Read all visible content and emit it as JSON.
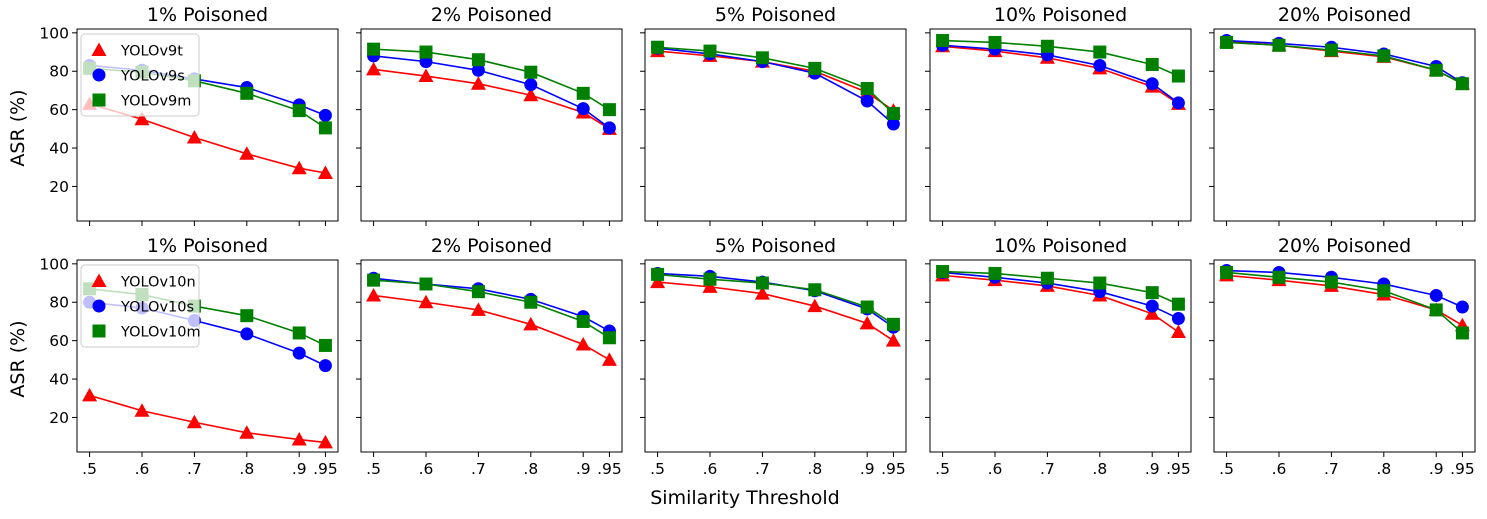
{
  "figure": {
    "xlabel": "Similarity Threshold",
    "ylabel": "ASR (%)"
  },
  "colors": {
    "tri": "#ff0000",
    "circ": "#0000ff",
    "sq": "#008000"
  },
  "chart_data": [
    {
      "type": "line",
      "row": 0,
      "col": 0,
      "title": "1% Poisoned",
      "x": [
        0.5,
        0.6,
        0.7,
        0.8,
        0.9,
        0.95
      ],
      "xticklabels": [
        ".5",
        ".6",
        ".7",
        ".8",
        ".9",
        ".95"
      ],
      "yticks": [
        20,
        40,
        60,
        80,
        100
      ],
      "ylim": [
        2,
        102
      ],
      "legend": "top-left",
      "series": [
        {
          "name": "YOLOv9t",
          "marker": "triangle",
          "values": [
            63,
            55,
            45.5,
            37,
            29.5,
            27
          ]
        },
        {
          "name": "YOLOv9s",
          "marker": "circle",
          "values": [
            83,
            80.5,
            76,
            71.5,
            62.5,
            57
          ]
        },
        {
          "name": "YOLOv9m",
          "marker": "square",
          "values": [
            81.5,
            79.5,
            75,
            68.5,
            59.5,
            50.5
          ]
        }
      ]
    },
    {
      "type": "line",
      "row": 0,
      "col": 1,
      "title": "2% Poisoned",
      "x": [
        0.5,
        0.6,
        0.7,
        0.8,
        0.9,
        0.95
      ],
      "xticklabels": [
        ".5",
        ".6",
        ".7",
        ".8",
        ".9",
        ".95"
      ],
      "yticks": [
        20,
        40,
        60,
        80,
        100
      ],
      "ylim": [
        2,
        102
      ],
      "series": [
        {
          "name": "YOLOv9t",
          "marker": "triangle",
          "values": [
            81,
            77.5,
            73.5,
            67.5,
            58.5,
            50
          ]
        },
        {
          "name": "YOLOv9s",
          "marker": "circle",
          "values": [
            88,
            85,
            80.5,
            73,
            60.5,
            50.5
          ]
        },
        {
          "name": "YOLOv9m",
          "marker": "square",
          "values": [
            91.5,
            90,
            86,
            79.5,
            68.5,
            60
          ]
        }
      ]
    },
    {
      "type": "line",
      "row": 0,
      "col": 2,
      "title": "5% Poisoned",
      "x": [
        0.5,
        0.6,
        0.7,
        0.8,
        0.9,
        0.95
      ],
      "xticklabels": [
        ".5",
        ".6",
        ".7",
        ".8",
        ".9",
        ".95"
      ],
      "yticks": [
        20,
        40,
        60,
        80,
        100
      ],
      "ylim": [
        2,
        102
      ],
      "series": [
        {
          "name": "YOLOv9t",
          "marker": "triangle",
          "values": [
            90.5,
            88,
            85,
            80,
            69,
            59.5
          ]
        },
        {
          "name": "YOLOv9s",
          "marker": "circle",
          "values": [
            92,
            89,
            85,
            79,
            64.5,
            52.5
          ]
        },
        {
          "name": "YOLOv9m",
          "marker": "square",
          "values": [
            92.5,
            90.5,
            87,
            81.5,
            71,
            58
          ]
        }
      ]
    },
    {
      "type": "line",
      "row": 0,
      "col": 3,
      "title": "10% Poisoned",
      "x": [
        0.5,
        0.6,
        0.7,
        0.8,
        0.9,
        0.95
      ],
      "xticklabels": [
        ".5",
        ".6",
        ".7",
        ".8",
        ".9",
        ".95"
      ],
      "yticks": [
        20,
        40,
        60,
        80,
        100
      ],
      "ylim": [
        2,
        102
      ],
      "series": [
        {
          "name": "YOLOv9t",
          "marker": "triangle",
          "values": [
            93,
            90.5,
            87,
            81.5,
            72,
            63
          ]
        },
        {
          "name": "YOLOv9s",
          "marker": "circle",
          "values": [
            93.5,
            91.5,
            88.5,
            83,
            73.5,
            63.5
          ]
        },
        {
          "name": "YOLOv9m",
          "marker": "square",
          "values": [
            96,
            95,
            93,
            90,
            83.5,
            77.5
          ]
        }
      ]
    },
    {
      "type": "line",
      "row": 0,
      "col": 4,
      "title": "20% Poisoned",
      "x": [
        0.5,
        0.6,
        0.7,
        0.8,
        0.9,
        0.95
      ],
      "xticklabels": [
        ".5",
        ".6",
        ".7",
        ".8",
        ".9",
        ".95"
      ],
      "yticks": [
        20,
        40,
        60,
        80,
        100
      ],
      "ylim": [
        2,
        102
      ],
      "series": [
        {
          "name": "YOLOv9t",
          "marker": "triangle",
          "values": [
            95.5,
            93.5,
            90.5,
            87.5,
            80.5,
            73.5
          ]
        },
        {
          "name": "YOLOv9s",
          "marker": "circle",
          "values": [
            96,
            94.5,
            92.5,
            89,
            82.5,
            74
          ]
        },
        {
          "name": "YOLOv9m",
          "marker": "square",
          "values": [
            95,
            93.5,
            91,
            88,
            80.5,
            73.5
          ]
        }
      ]
    },
    {
      "type": "line",
      "row": 1,
      "col": 0,
      "title": "1% Poisoned",
      "x": [
        0.5,
        0.6,
        0.7,
        0.8,
        0.9,
        0.95
      ],
      "xticklabels": [
        ".5",
        ".6",
        ".7",
        ".8",
        ".9",
        ".95"
      ],
      "yticks": [
        20,
        40,
        60,
        80,
        100
      ],
      "ylim": [
        2,
        102
      ],
      "legend": "top-left",
      "series": [
        {
          "name": "YOLOv10n",
          "marker": "triangle",
          "values": [
            31.5,
            23.5,
            17.5,
            12,
            8.5,
            7
          ]
        },
        {
          "name": "YOLOv10s",
          "marker": "circle",
          "values": [
            80,
            77,
            70.5,
            63.5,
            53.5,
            47
          ]
        },
        {
          "name": "YOLOv10m",
          "marker": "square",
          "values": [
            87,
            84,
            78,
            73,
            64,
            57.5
          ]
        }
      ]
    },
    {
      "type": "line",
      "row": 1,
      "col": 1,
      "title": "2% Poisoned",
      "x": [
        0.5,
        0.6,
        0.7,
        0.8,
        0.9,
        0.95
      ],
      "xticklabels": [
        ".5",
        ".6",
        ".7",
        ".8",
        ".9",
        ".95"
      ],
      "yticks": [
        20,
        40,
        60,
        80,
        100
      ],
      "ylim": [
        2,
        102
      ],
      "series": [
        {
          "name": "YOLOv10n",
          "marker": "triangle",
          "values": [
            83.5,
            80,
            76,
            68.5,
            58,
            50
          ]
        },
        {
          "name": "YOLOv10s",
          "marker": "circle",
          "values": [
            92.5,
            89.5,
            87,
            81.5,
            72.5,
            65
          ]
        },
        {
          "name": "YOLOv10m",
          "marker": "square",
          "values": [
            91.5,
            89.5,
            85.5,
            80,
            70,
            61.5
          ]
        }
      ]
    },
    {
      "type": "line",
      "row": 1,
      "col": 2,
      "title": "5% Poisoned",
      "x": [
        0.5,
        0.6,
        0.7,
        0.8,
        0.9,
        0.95
      ],
      "xticklabels": [
        ".5",
        ".6",
        ".7",
        ".8",
        ".9",
        ".95"
      ],
      "yticks": [
        20,
        40,
        60,
        80,
        100
      ],
      "ylim": [
        2,
        102
      ],
      "series": [
        {
          "name": "YOLOv10n",
          "marker": "triangle",
          "values": [
            90.5,
            88,
            84.5,
            78,
            69,
            60
          ]
        },
        {
          "name": "YOLOv10s",
          "marker": "circle",
          "values": [
            95,
            93.5,
            90.5,
            86,
            76.5,
            67
          ]
        },
        {
          "name": "YOLOv10m",
          "marker": "square",
          "values": [
            94.5,
            92,
            90,
            86.5,
            77.5,
            68.5
          ]
        }
      ]
    },
    {
      "type": "line",
      "row": 1,
      "col": 3,
      "title": "10% Poisoned",
      "x": [
        0.5,
        0.6,
        0.7,
        0.8,
        0.9,
        0.95
      ],
      "xticklabels": [
        ".5",
        ".6",
        ".7",
        ".8",
        ".9",
        ".95"
      ],
      "yticks": [
        20,
        40,
        60,
        80,
        100
      ],
      "ylim": [
        2,
        102
      ],
      "series": [
        {
          "name": "YOLOv10n",
          "marker": "triangle",
          "values": [
            94,
            91.5,
            88.5,
            83.5,
            74,
            64.5
          ]
        },
        {
          "name": "YOLOv10s",
          "marker": "circle",
          "values": [
            95.5,
            93,
            90,
            85.5,
            78,
            71.5
          ]
        },
        {
          "name": "YOLOv10m",
          "marker": "square",
          "values": [
            96,
            95,
            92.5,
            90,
            85,
            79
          ]
        }
      ]
    },
    {
      "type": "line",
      "row": 1,
      "col": 4,
      "title": "20% Poisoned",
      "x": [
        0.5,
        0.6,
        0.7,
        0.8,
        0.9,
        0.95
      ],
      "xticklabels": [
        ".5",
        ".6",
        ".7",
        ".8",
        ".9",
        ".95"
      ],
      "yticks": [
        20,
        40,
        60,
        80,
        100
      ],
      "ylim": [
        2,
        102
      ],
      "series": [
        {
          "name": "YOLOv10n",
          "marker": "triangle",
          "values": [
            94,
            91.5,
            88.5,
            84,
            76,
            68
          ]
        },
        {
          "name": "YOLOv10s",
          "marker": "circle",
          "values": [
            96.5,
            95.5,
            93,
            89.5,
            83.5,
            77.5
          ]
        },
        {
          "name": "YOLOv10m",
          "marker": "square",
          "values": [
            95.5,
            93,
            90.5,
            86,
            76,
            64
          ]
        }
      ]
    }
  ]
}
